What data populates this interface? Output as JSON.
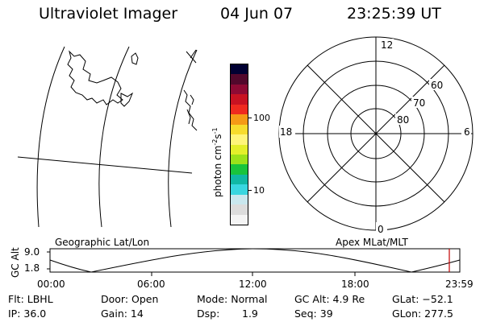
{
  "header": {
    "title": "Ultraviolet Imager",
    "date": "04 Jun 07",
    "time": "23:25:39 UT"
  },
  "colorbar": {
    "unit_label": "photon cm",
    "exp1": "-2",
    "unit_mid": "s",
    "exp2": "-1",
    "tick_100": "100",
    "tick_10": "10",
    "colors": [
      "#f4f4f4",
      "#dcdcdc",
      "#c9e7ee",
      "#39d6e0",
      "#10b8a4",
      "#19c43c",
      "#9be21a",
      "#e4ef2a",
      "#fff57a",
      "#f7dc2d",
      "#f59a16",
      "#ef2a1f",
      "#c81222",
      "#8e0a34",
      "#52082c",
      "#000032"
    ]
  },
  "polar": {
    "mlt_labels": {
      "top": "12",
      "left": "18",
      "right": "6",
      "bottom": "0"
    },
    "lat_labels": [
      "60",
      "70",
      "80"
    ]
  },
  "timeline": {
    "ylabel": "GC Alt",
    "ytick_top": "9.0",
    "ytick_bottom": "1.8",
    "left_title": "Geographic Lat/Lon",
    "right_title": "Apex  MLat/MLT",
    "xticks": [
      "00:00",
      "06:00",
      "12:00",
      "18:00",
      "23:59"
    ],
    "marker_color": "#c00000"
  },
  "info": {
    "flt": "Flt: LBHL",
    "door": "Door: Open",
    "mode": "Mode: Normal",
    "gcalt": "GC Alt: 4.9 Re",
    "glat": "GLat: −52.1",
    "ip": "IP: 36.0",
    "gain": "Gain: 14",
    "dsp_label": "Dsp:",
    "dsp_value": "1.9",
    "seq": "Seq: 39",
    "glon": "GLon: 277.5"
  }
}
